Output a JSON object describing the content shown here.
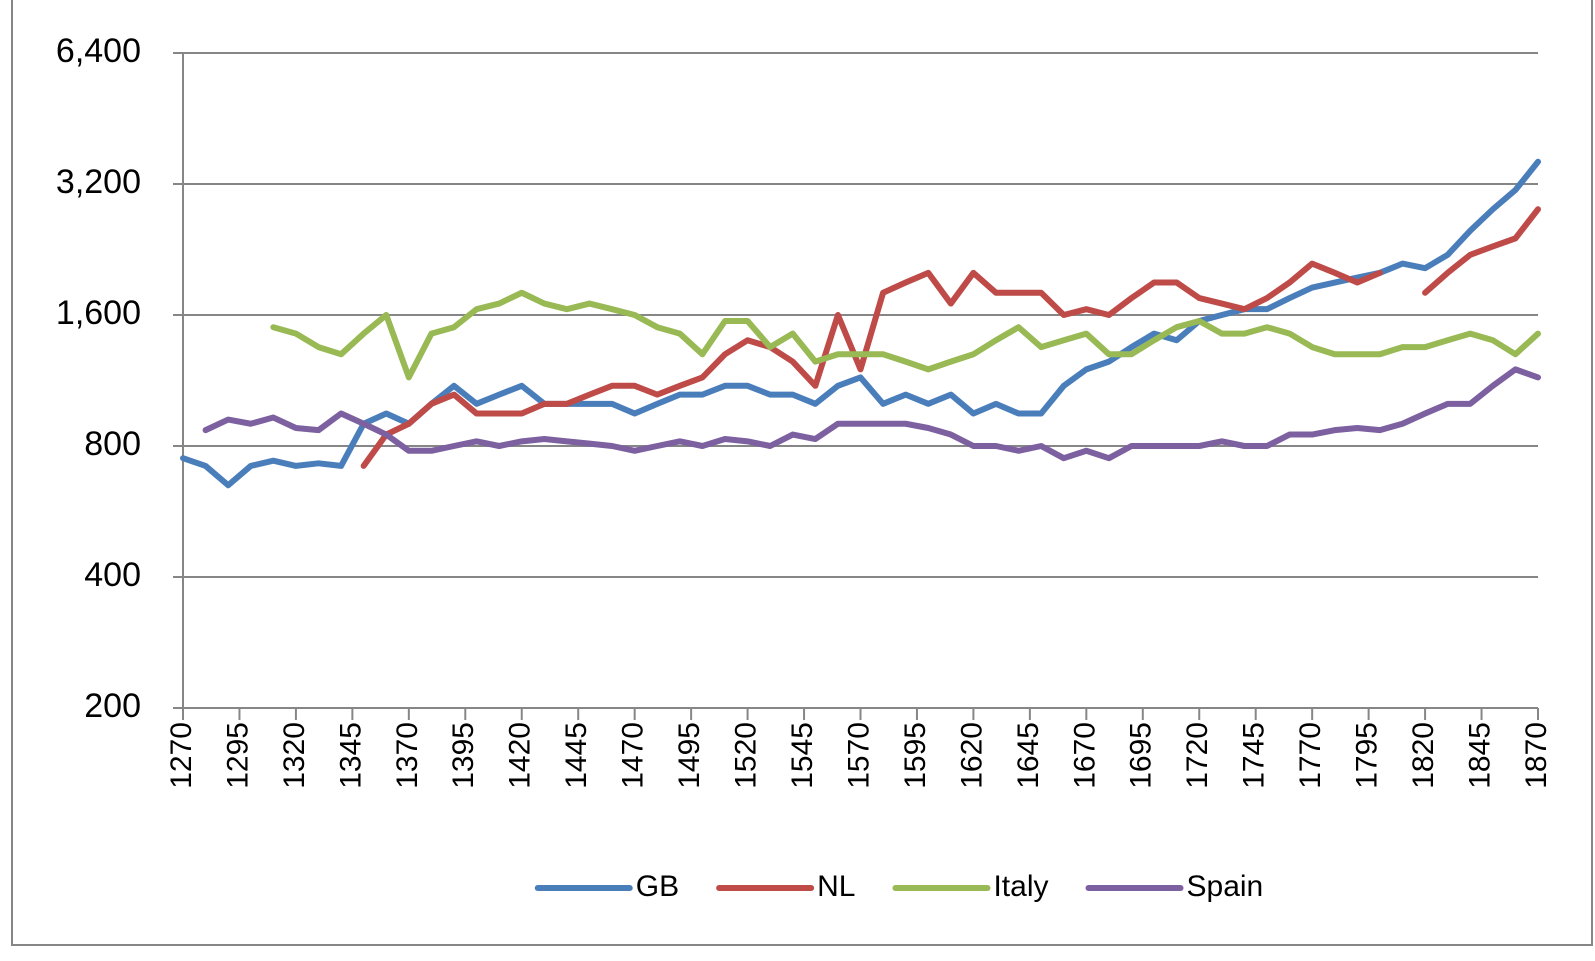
{
  "chart_data": {
    "type": "line",
    "yscale": "log",
    "grid": true,
    "legend": "bottom",
    "xlim": [
      1270,
      1870
    ],
    "xticks": [
      1270,
      1295,
      1320,
      1345,
      1370,
      1395,
      1420,
      1445,
      1470,
      1495,
      1520,
      1545,
      1570,
      1595,
      1620,
      1645,
      1670,
      1695,
      1720,
      1745,
      1770,
      1795,
      1820,
      1845,
      1870
    ],
    "ylim": [
      200,
      6400
    ],
    "yticks": [
      200,
      400,
      800,
      {
        "value": 1600,
        "label": "1,600"
      },
      {
        "value": 3200,
        "label": "3,200"
      },
      {
        "value": 6400,
        "label": "6,400"
      }
    ],
    "x": [
      1270,
      1280,
      1290,
      1300,
      1310,
      1320,
      1330,
      1340,
      1350,
      1360,
      1370,
      1380,
      1390,
      1400,
      1410,
      1420,
      1430,
      1440,
      1450,
      1460,
      1470,
      1480,
      1490,
      1500,
      1510,
      1520,
      1530,
      1540,
      1550,
      1560,
      1570,
      1580,
      1590,
      1600,
      1610,
      1620,
      1630,
      1640,
      1650,
      1660,
      1670,
      1680,
      1690,
      1700,
      1710,
      1720,
      1730,
      1740,
      1750,
      1760,
      1770,
      1780,
      1790,
      1800,
      1810,
      1820,
      1830,
      1840,
      1850,
      1860,
      1870
    ],
    "series": [
      {
        "name": "GB",
        "color": "#4a7ebb",
        "values": [
          750,
          720,
          650,
          720,
          740,
          720,
          730,
          720,
          900,
          950,
          900,
          1000,
          1100,
          1000,
          1050,
          1100,
          1000,
          1000,
          1000,
          1000,
          950,
          1000,
          1050,
          1050,
          1100,
          1100,
          1050,
          1050,
          1000,
          1100,
          1150,
          1000,
          1050,
          1000,
          1050,
          950,
          1000,
          950,
          950,
          1100,
          1200,
          1250,
          1350,
          1450,
          1400,
          1550,
          1600,
          1650,
          1650,
          1750,
          1850,
          1900,
          1950,
          2000,
          2100,
          2050,
          2200,
          2500,
          2800,
          3100,
          3600
        ]
      },
      {
        "name": "NL",
        "color": "#be4b48",
        "values": [
          null,
          null,
          null,
          null,
          null,
          null,
          null,
          null,
          720,
          850,
          900,
          1000,
          1050,
          950,
          950,
          950,
          1000,
          1000,
          1050,
          1100,
          1100,
          1050,
          1100,
          1150,
          1300,
          1400,
          1350,
          1250,
          1100,
          1600,
          1200,
          1800,
          1900,
          2000,
          1700,
          2000,
          1800,
          1800,
          1800,
          1600,
          1650,
          1600,
          1750,
          1900,
          1900,
          1750,
          1700,
          1650,
          1750,
          1900,
          2100,
          2000,
          1900,
          2000,
          null,
          1800,
          2000,
          2200,
          2300,
          2400,
          2800
        ]
      },
      {
        "name": "Italy",
        "color": "#98b954",
        "values": [
          null,
          null,
          null,
          null,
          1500,
          1450,
          1350,
          1300,
          1450,
          1600,
          1150,
          1450,
          1500,
          1650,
          1700,
          1800,
          1700,
          1650,
          1700,
          1650,
          1600,
          1500,
          1450,
          1300,
          1550,
          1550,
          1350,
          1450,
          1250,
          1300,
          1300,
          1300,
          1250,
          1200,
          1250,
          1300,
          1400,
          1500,
          1350,
          1400,
          1450,
          1300,
          1300,
          1400,
          1500,
          1550,
          1450,
          1450,
          1500,
          1450,
          1350,
          1300,
          1300,
          1300,
          1350,
          1350,
          1400,
          1450,
          1400,
          1300,
          1450
        ]
      },
      {
        "name": "Spain",
        "color": "#7d60a0",
        "values": [
          null,
          870,
          920,
          900,
          930,
          880,
          870,
          950,
          900,
          850,
          780,
          780,
          800,
          820,
          800,
          820,
          830,
          820,
          810,
          800,
          780,
          800,
          820,
          800,
          830,
          820,
          800,
          850,
          830,
          900,
          900,
          900,
          900,
          880,
          850,
          800,
          800,
          780,
          800,
          750,
          780,
          750,
          800,
          800,
          800,
          800,
          820,
          800,
          800,
          850,
          850,
          870,
          880,
          870,
          900,
          950,
          1000,
          1000,
          1100,
          1200,
          1150
        ]
      }
    ]
  }
}
